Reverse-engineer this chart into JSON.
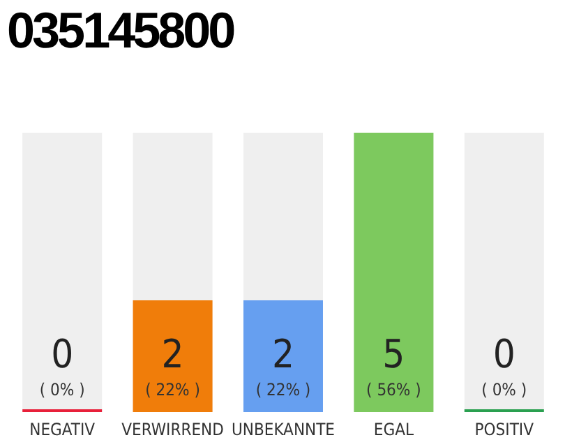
{
  "chart_data": {
    "type": "bar",
    "title": "035145800",
    "categories": [
      "NEGATIV",
      "VERWIRREND",
      "UNBEKANNTE",
      "EGAL",
      "POSITIV"
    ],
    "values": [
      0,
      2,
      2,
      5,
      0
    ],
    "colors": [
      "#e8203a",
      "#f07d0a",
      "#669ff0",
      "#7dc95e",
      "#2aa050"
    ],
    "data_labels": true,
    "annotations": [
      "( 0% )",
      "( 22% )",
      "( 22% )",
      "( 56% )",
      "( 0% )"
    ]
  }
}
